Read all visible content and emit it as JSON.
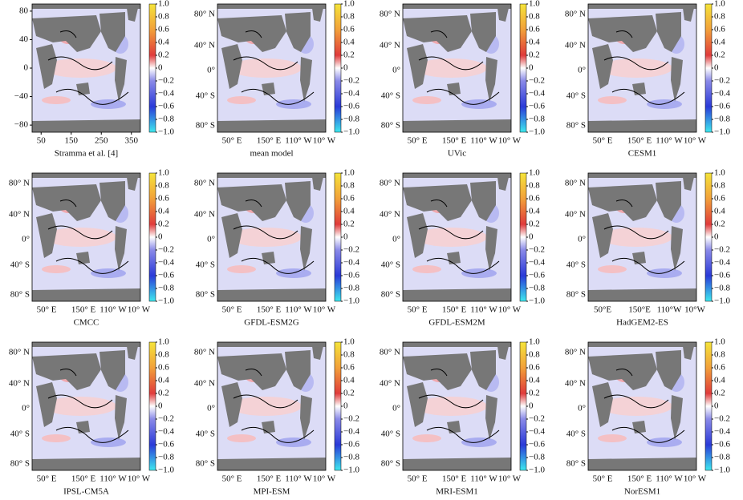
{
  "colorbar_ticks": [
    {
      "value": 1.0,
      "label": "1.0"
    },
    {
      "value": 0.8,
      "label": "0.8"
    },
    {
      "value": 0.6,
      "label": "0.6"
    },
    {
      "value": 0.4,
      "label": "0.4"
    },
    {
      "value": 0.2,
      "label": "0.2"
    },
    0,
    {
      "value": -0.2,
      "label": "−0.2"
    },
    {
      "value": -0.4,
      "label": "−0.4"
    },
    {
      "value": -0.6,
      "label": "−0.6"
    },
    {
      "value": -0.8,
      "label": "−0.8"
    },
    {
      "value": -1.0,
      "label": "−1.0"
    }
  ],
  "colorbar_lim": [
    -1.0,
    1.0
  ],
  "map_xticks": [
    "50° E",
    "150° E",
    "110° W",
    "10° W"
  ],
  "map_yticks": [
    "80° N",
    "40° N",
    "0°",
    "40° S",
    "80° S"
  ],
  "panels": [
    {
      "caption": "Stramma et al. [4]",
      "xlim": [
        20,
        380
      ],
      "ylim": [
        -90,
        90
      ],
      "xticks": [
        50,
        150,
        250,
        350
      ],
      "yticks": [
        80,
        40,
        0,
        {
          "value": -40,
          "label": "−40"
        },
        {
          "value": -80,
          "label": "−80"
        }
      ]
    },
    {
      "caption": "mean model"
    },
    {
      "caption": "UVic"
    },
    {
      "caption": "CESM1"
    },
    {
      "caption": "CMCC"
    },
    {
      "caption": "GFDL-ESM2G"
    },
    {
      "caption": "GFDL-ESM2M"
    },
    {
      "caption": "HadGEM2-ES",
      "xticks": [
        "50°E",
        "150°E",
        "110°W",
        "10°W"
      ]
    },
    {
      "caption": "IPSL-CM5A"
    },
    {
      "caption": "MPI-ESM"
    },
    {
      "caption": "MRI-ESM1"
    },
    {
      "caption": "NorESM1"
    }
  ]
}
